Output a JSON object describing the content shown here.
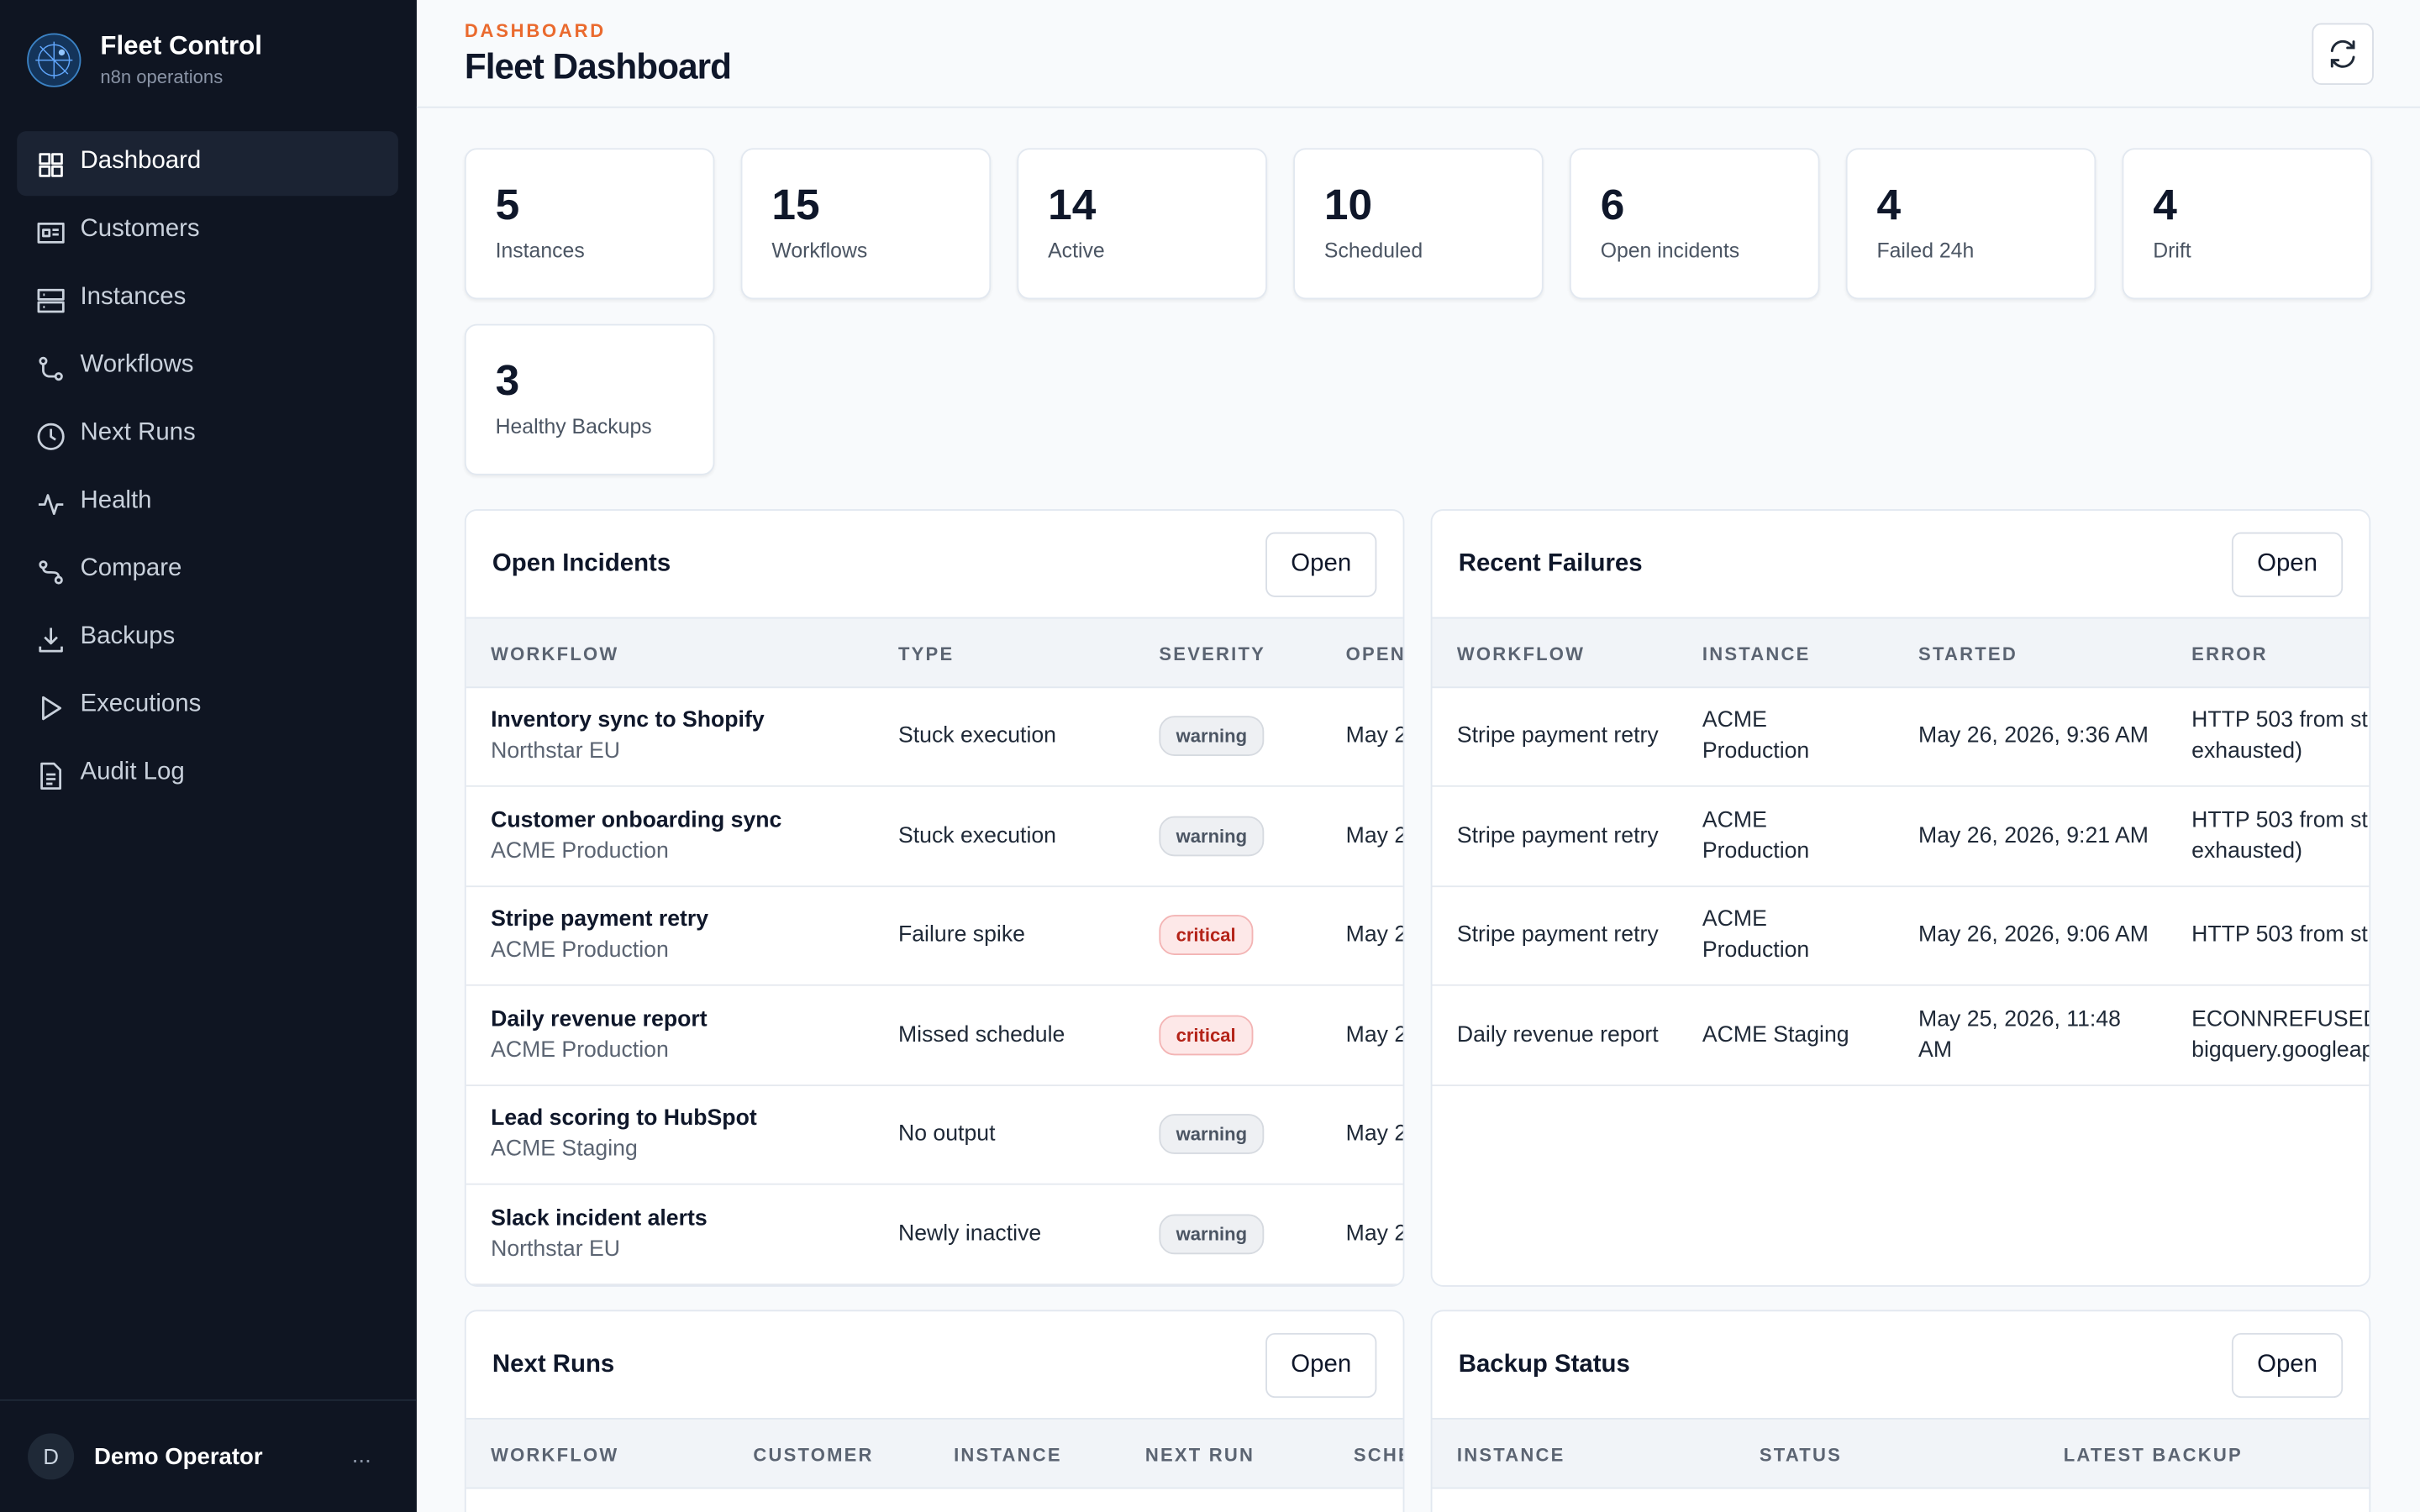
{
  "sidebar": {
    "brand": {
      "title": "Fleet Control",
      "subtitle": "n8n operations"
    },
    "nav": [
      "Dashboard",
      "Customers",
      "Instances",
      "Workflows",
      "Next Runs",
      "Health",
      "Compare",
      "Backups",
      "Executions",
      "Audit Log"
    ],
    "user": {
      "initial": "D",
      "name": "Demo Operator",
      "menu": "..."
    }
  },
  "header": {
    "eyebrow": "DASHBOARD",
    "title": "Fleet Dashboard"
  },
  "stats": [
    {
      "value": 5,
      "label": "Instances"
    },
    {
      "value": 15,
      "label": "Workflows"
    },
    {
      "value": 14,
      "label": "Active"
    },
    {
      "value": 10,
      "label": "Scheduled"
    },
    {
      "value": 6,
      "label": "Open incidents"
    },
    {
      "value": 4,
      "label": "Failed 24h"
    },
    {
      "value": 4,
      "label": "Drift"
    },
    {
      "value": 3,
      "label": "Healthy Backups"
    }
  ],
  "panels": [
    {
      "title": "Open Incidents",
      "action": "Open",
      "columns": [
        "WORKFLOW",
        "TYPE",
        "SEVERITY",
        "OPEN"
      ],
      "rows": [
        [
          {
            "title": "Inventory sync to Shopify",
            "subtitle": "Northstar EU"
          },
          "Stuck execution",
          {
            "badge": "warning",
            "tone": "gray"
          },
          "May 2"
        ],
        [
          {
            "title": "Customer onboarding sync",
            "subtitle": "ACME Production"
          },
          "Stuck execution",
          {
            "badge": "warning",
            "tone": "gray"
          },
          "May 2"
        ],
        [
          {
            "title": "Stripe payment retry",
            "subtitle": "ACME Production"
          },
          "Failure spike",
          {
            "badge": "critical",
            "tone": "red"
          },
          "May 2"
        ],
        [
          {
            "title": "Daily revenue report",
            "subtitle": "ACME Production"
          },
          "Missed schedule",
          {
            "badge": "critical",
            "tone": "red"
          },
          "May 2"
        ],
        [
          {
            "title": "Lead scoring to HubSpot",
            "subtitle": "ACME Staging"
          },
          "No output",
          {
            "badge": "warning",
            "tone": "gray"
          },
          "May 2"
        ],
        [
          {
            "title": "Slack incident alerts",
            "subtitle": "Northstar EU"
          },
          "Newly inactive",
          {
            "badge": "warning",
            "tone": "gray"
          },
          "May 2"
        ]
      ]
    },
    {
      "title": "Recent Failures",
      "action": "Open",
      "columns": [
        "WORKFLOW",
        "INSTANCE",
        "STARTED",
        "ERROR"
      ],
      "rows": [
        [
          "Stripe payment retry",
          "ACME Production",
          "May 26, 2026, 9:36 AM",
          "HTTP 503 from st exhausted)"
        ],
        [
          "Stripe payment retry",
          "ACME Production",
          "May 26, 2026, 9:21 AM",
          "HTTP 503 from st exhausted)"
        ],
        [
          "Stripe payment retry",
          "ACME Production",
          "May 26, 2026, 9:06 AM",
          "HTTP 503 from st"
        ],
        [
          "Daily revenue report",
          "ACME Staging",
          "May 25, 2026, 11:48 AM",
          "ECONNREFUSED bigquery.googleap"
        ]
      ]
    },
    {
      "title": "Next Runs",
      "action": "Open",
      "columns": [
        "WORKFLOW",
        "CUSTOMER",
        "INSTANCE",
        "NEXT RUN",
        "SCHE"
      ],
      "rows": []
    },
    {
      "title": "Backup Status",
      "action": "Open",
      "columns": [
        "INSTANCE",
        "STATUS",
        "LATEST BACKUP"
      ],
      "rows": []
    }
  ]
}
